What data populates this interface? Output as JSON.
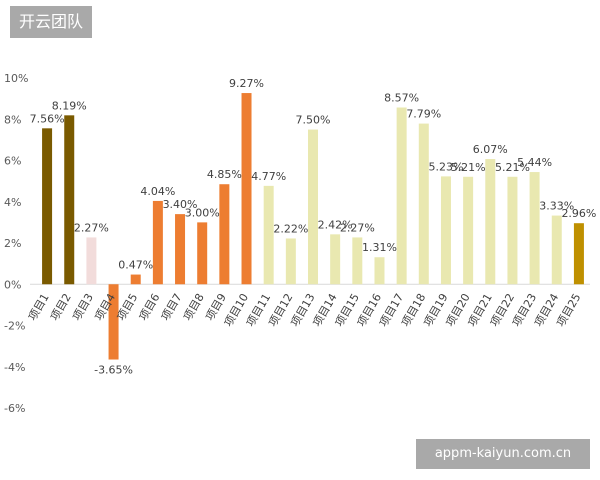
{
  "watermarks": {
    "top_left": "开云团队",
    "bottom_right": "appm-kaiyun.com.cn"
  },
  "chart_data": {
    "type": "bar",
    "title": "",
    "xlabel": "",
    "ylabel": "",
    "ylim": [
      -6,
      10
    ],
    "yticks": [
      "10%",
      "8%",
      "6%",
      "4%",
      "2%",
      "0%",
      "-2%",
      "-4%",
      "-6%"
    ],
    "grid": false,
    "categories": [
      "项目1",
      "项目2",
      "项目3",
      "项目4",
      "项目5",
      "项目6",
      "项目7",
      "项目8",
      "项目9",
      "项目10",
      "项目11",
      "项目12",
      "项目13",
      "项目14",
      "项目15",
      "项目16",
      "项目17",
      "项目18",
      "项目19",
      "项目20",
      "项目21",
      "项目22",
      "项目23",
      "项目24",
      "项目25"
    ],
    "values": [
      7.56,
      8.19,
      2.27,
      -3.65,
      0.47,
      4.04,
      3.4,
      3.0,
      4.85,
      9.27,
      4.77,
      2.22,
      7.5,
      2.42,
      2.27,
      1.31,
      8.57,
      7.79,
      5.23,
      5.21,
      6.07,
      5.21,
      5.44,
      3.33,
      2.96
    ],
    "labels": [
      "7.56%",
      "8.19%",
      "2.27%",
      "-3.65%",
      "0.47%",
      "4.04%",
      "3.40%",
      "3.00%",
      "4.85%",
      "9.27%",
      "4.77%",
      "2.22%",
      "7.50%",
      "2.42%",
      "2.27%",
      "1.31%",
      "8.57%",
      "7.79%",
      "5.23%",
      "5.21%",
      "6.07%",
      "5.21%",
      "5.44%",
      "3.33%",
      "2.96%"
    ],
    "colors": [
      "#7a5a00",
      "#7a5a00",
      "#f2dcdb",
      "#ed7d31",
      "#ed7d31",
      "#ed7d31",
      "#ed7d31",
      "#ed7d31",
      "#ed7d31",
      "#ed7d31",
      "#e9e8b0",
      "#e9e8b0",
      "#e9e8b0",
      "#e9e8b0",
      "#e9e8b0",
      "#e9e8b0",
      "#e9e8b0",
      "#e9e8b0",
      "#e9e8b0",
      "#e9e8b0",
      "#e9e8b0",
      "#e9e8b0",
      "#e9e8b0",
      "#e9e8b0",
      "#bf9000"
    ]
  }
}
